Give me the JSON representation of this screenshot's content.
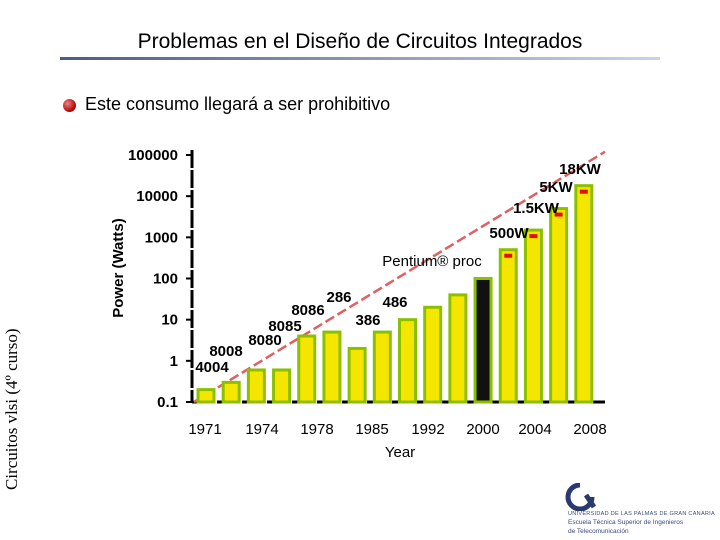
{
  "slide": {
    "title": "Problemas en el Diseño de Circuitos Integrados",
    "bullet": "Este consumo llegará a ser prohibitivo",
    "side_label": "Circuitos vlsi (4º curso)"
  },
  "logo": {
    "line1": "UNIVERSIDAD DE LAS PALMAS DE GRAN CANARIA",
    "line2": "Escuela Técnica Superior de Ingenieros",
    "line3": "de Telecomunicación"
  },
  "chart_data": {
    "type": "bar",
    "ylabel": "Power (Watts)",
    "xlabel": "Year",
    "yscale": "log",
    "ylim": [
      0.1,
      100000
    ],
    "yticks": [
      "100000",
      "10000",
      "1000",
      "100",
      "10",
      "1",
      "0.1"
    ],
    "xticks": [
      "1971",
      "1974",
      "1978",
      "1985",
      "1992",
      "2000",
      "2004",
      "2008"
    ],
    "bars": [
      {
        "value": 0.2
      },
      {
        "value": 0.3
      },
      {
        "value": 0.6
      },
      {
        "value": 0.6
      },
      {
        "value": 4
      },
      {
        "value": 5
      },
      {
        "value": 2
      },
      {
        "value": 5
      },
      {
        "value": 10
      },
      {
        "value": 20
      },
      {
        "value": 40
      },
      {
        "value": 100
      },
      {
        "value": 500
      },
      {
        "value": 1500
      },
      {
        "value": 5000
      },
      {
        "value": 18000
      }
    ],
    "trend": {
      "from": 0.1,
      "to": 120000
    },
    "annotations": [
      "4004",
      "8008",
      "8080",
      "8085",
      "8086",
      "286",
      "386",
      "486",
      "Pentium® proc",
      "500W",
      "1.5KW",
      "5KW",
      "18KW"
    ],
    "colors": {
      "bar": "#f5e600",
      "bar_outline": "#8cbf00",
      "top": "#e01010",
      "trend": "#e06060",
      "black_bar": "#111111"
    }
  }
}
